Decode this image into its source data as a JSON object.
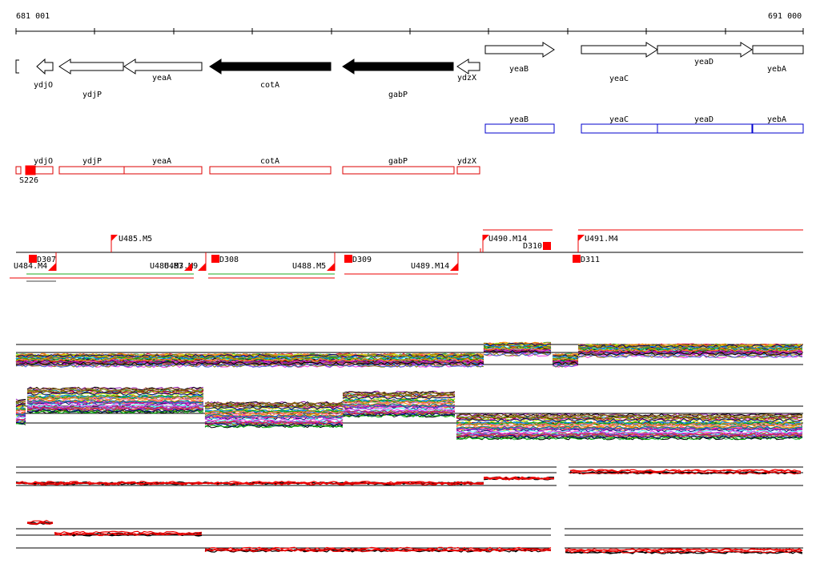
{
  "ruler": {
    "start_label": "681 001",
    "end_label": "691 000"
  },
  "genes": [
    {
      "name": "ydjO",
      "dir": "left",
      "filled": false
    },
    {
      "name": "ydjP",
      "dir": "left",
      "filled": false
    },
    {
      "name": "yeaA",
      "dir": "left",
      "filled": false
    },
    {
      "name": "cotA",
      "dir": "left",
      "filled": true
    },
    {
      "name": "gabP",
      "dir": "left",
      "filled": true
    },
    {
      "name": "ydzX",
      "dir": "left",
      "filled": false
    },
    {
      "name": "yeaB",
      "dir": "right",
      "filled": false
    },
    {
      "name": "yeaC",
      "dir": "right",
      "filled": false
    },
    {
      "name": "yeaD",
      "dir": "right",
      "filled": false
    },
    {
      "name": "yebA",
      "dir": "right",
      "filled": false
    }
  ],
  "forward_transcripts": [
    "yeaB",
    "yeaC",
    "yeaD",
    "yebA"
  ],
  "reverse_transcripts": [
    "ydjO",
    "ydjP",
    "yeaA",
    "cotA",
    "gabP",
    "ydzX"
  ],
  "reverse_marker": "S226",
  "upper_units": [
    "U485.M5",
    "U490.M14",
    "D310",
    "U491.M4"
  ],
  "lower_units": [
    "U484.M4",
    "D307",
    "U486.M3",
    "U487.M9",
    "D308",
    "U488.M5",
    "D309",
    "U489.M14",
    "D311"
  ],
  "colors": {
    "gene_outline": "#000000",
    "forward_box": "#0000cc",
    "reverse_box": "#dd0000",
    "marker_red": "#ff0000",
    "line_red": "#ee0000",
    "line_green": "#22aa22"
  }
}
